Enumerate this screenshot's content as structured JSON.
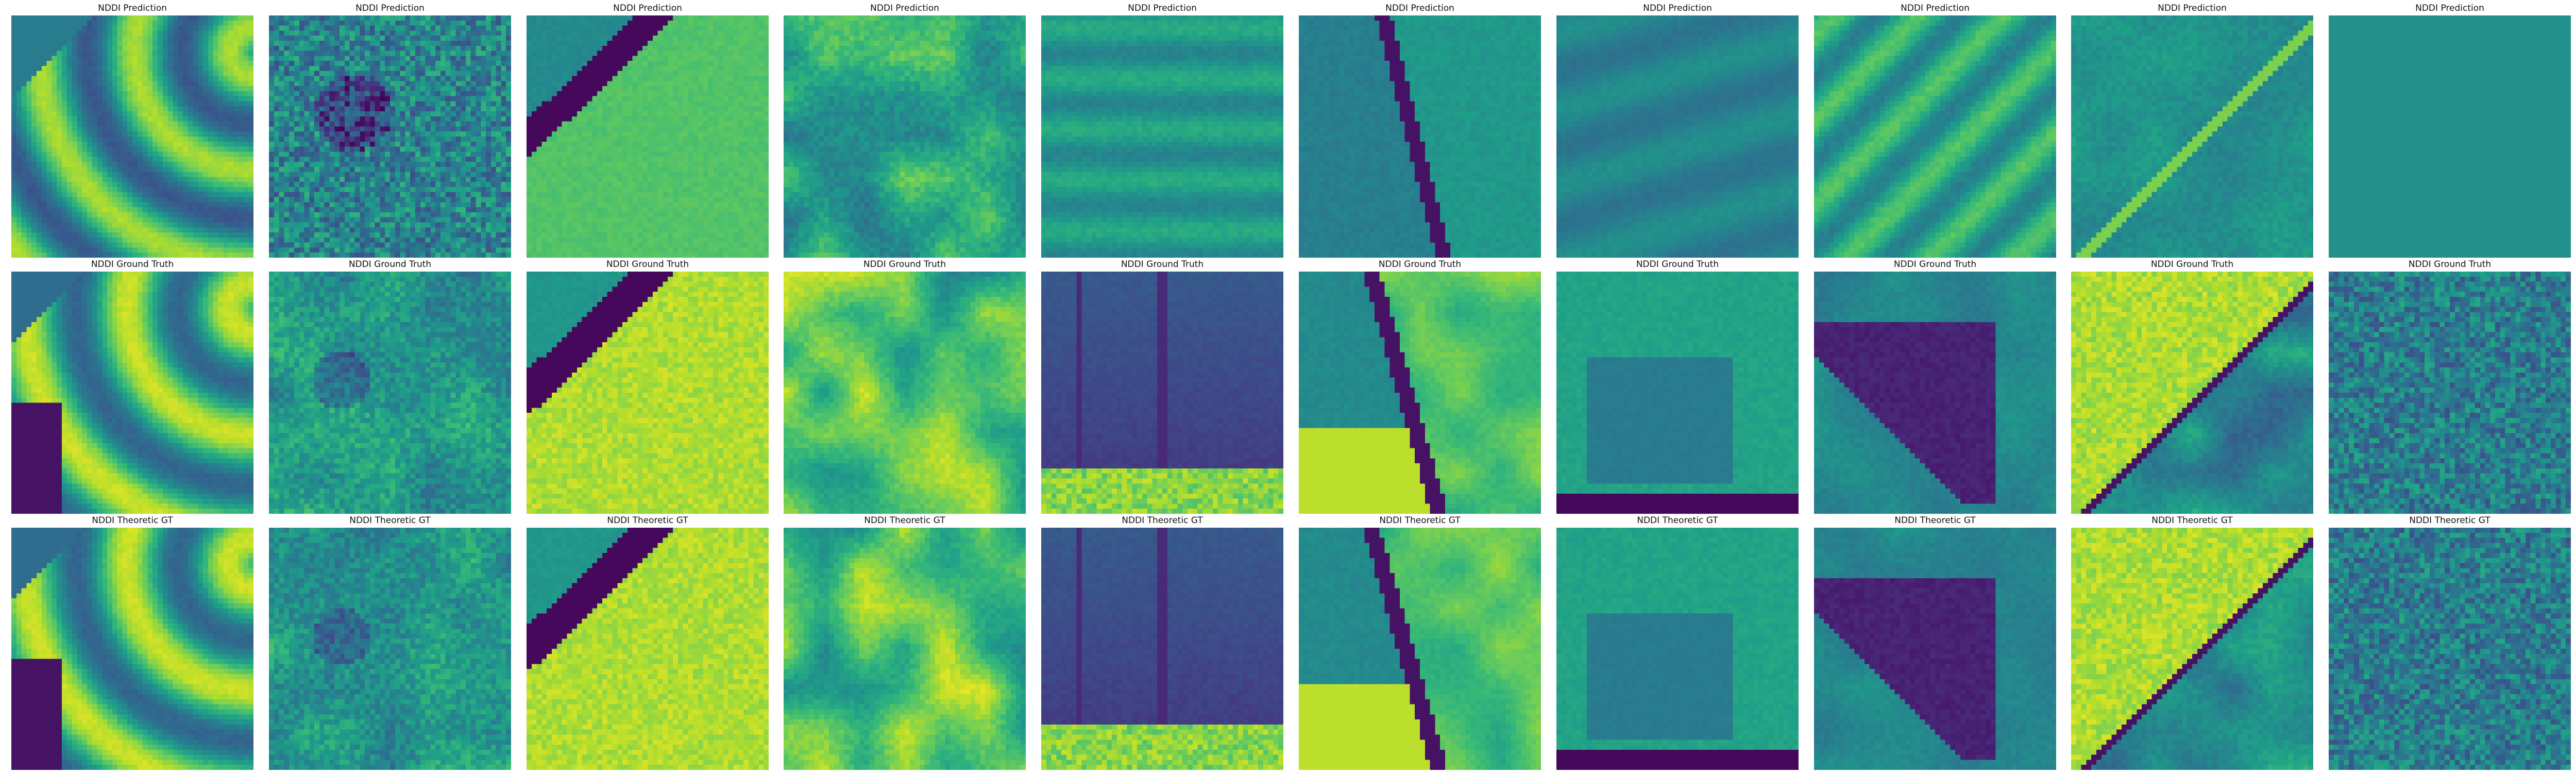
{
  "figure": {
    "colormap": "viridis",
    "rows": [
      {
        "title": "NDDI Prediction",
        "panels": [
          {
            "pattern": "curved-field-bands"
          },
          {
            "pattern": "speckle-noise-dark-blob"
          },
          {
            "pattern": "dark-river-band-upper-left"
          },
          {
            "pattern": "patchy-fields"
          },
          {
            "pattern": "horizontal-striped-field"
          },
          {
            "pattern": "river-channel-diagonal"
          },
          {
            "pattern": "tilted-rectangular-field"
          },
          {
            "pattern": "diagonal-ridges"
          },
          {
            "pattern": "diagonal-road-edges"
          },
          {
            "pattern": "uniform-teal"
          }
        ]
      },
      {
        "title": "NDDI Ground Truth",
        "panels": [
          {
            "pattern": "curved-field-bands-dark-corner"
          },
          {
            "pattern": "textured-fields-pond"
          },
          {
            "pattern": "dark-river-bright-field"
          },
          {
            "pattern": "bright-patchwork-fields"
          },
          {
            "pattern": "dark-field-vertical-lines"
          },
          {
            "pattern": "river-channel-bright-fields"
          },
          {
            "pattern": "rectangular-field-dark-bottom"
          },
          {
            "pattern": "dark-triangle-field"
          },
          {
            "pattern": "bright-diagonal-field-dark-parcels"
          },
          {
            "pattern": "fine-noise"
          }
        ]
      },
      {
        "title": "NDDI Theoretic GT",
        "panels": [
          {
            "pattern": "curved-field-bands-dark-corner"
          },
          {
            "pattern": "textured-fields-pond"
          },
          {
            "pattern": "dark-river-bright-field"
          },
          {
            "pattern": "bright-patchwork-fields"
          },
          {
            "pattern": "dark-field-vertical-lines"
          },
          {
            "pattern": "river-channel-bright-fields"
          },
          {
            "pattern": "rectangular-field-dark-bottom"
          },
          {
            "pattern": "dark-triangle-field"
          },
          {
            "pattern": "bright-diagonal-field-dark-parcels"
          },
          {
            "pattern": "fine-noise"
          }
        ]
      }
    ]
  }
}
